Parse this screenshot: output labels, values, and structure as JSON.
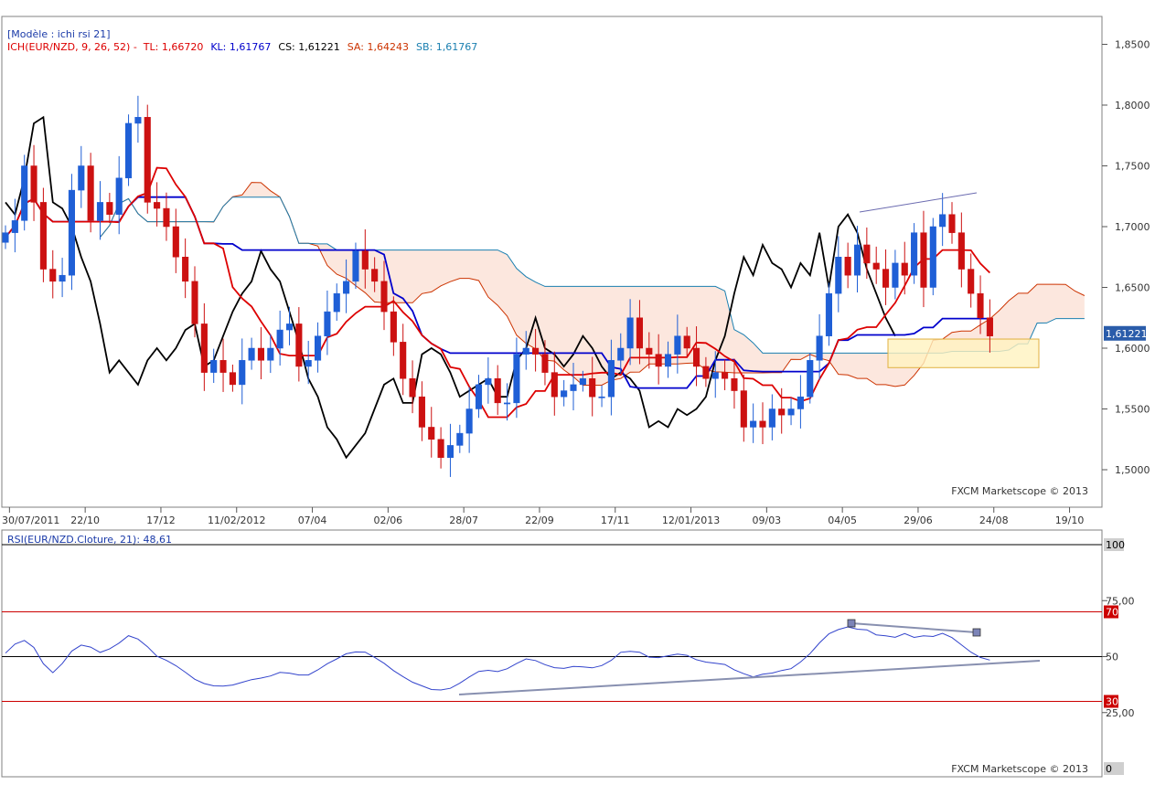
{
  "price_chart": {
    "header_template": "[Modèle : ichi rsi 21]",
    "legend": [
      {
        "text": "ICH(EUR/NZD, 9, 26, 52) -",
        "color": "#dd0000"
      },
      {
        "text": "TL: 1,66720",
        "color": "#dd0000"
      },
      {
        "text": "KL: 1,61767",
        "color": "#0000cc"
      },
      {
        "text": "CS: 1,61221",
        "color": "#000000"
      },
      {
        "text": "SA: 1,64243",
        "color": "#cc3300"
      },
      {
        "text": "SB: 1,61767",
        "color": "#1a7fb0"
      }
    ],
    "last_price_label": "1,61221",
    "watermark": "FXCM Marketscope © 2013",
    "y_ticks": [
      "1,8500",
      "1,8000",
      "1,7500",
      "1,7000",
      "1,6500",
      "1,6000",
      "1,5500",
      "1,5000"
    ],
    "x_ticks": [
      "30/07/2011",
      "22/10",
      "17/12",
      "11/02/2012",
      "07/04",
      "02/06",
      "28/07",
      "22/09",
      "17/11",
      "12/01/2013",
      "09/03",
      "04/05",
      "29/06",
      "24/08",
      "19/10"
    ]
  },
  "rsi_chart": {
    "header": "RSI(EUR/NZD.Cloture, 21): 48,61",
    "watermark": "FXCM Marketscope © 2013",
    "y_ticks": [
      "100",
      "75,00",
      "70",
      "50",
      "30",
      "25,00",
      "0"
    ]
  },
  "chart_data": [
    {
      "type": "candlestick",
      "title": "ICH(EUR/NZD, 9, 26, 52)",
      "symbol": "EUR/NZD",
      "ylim": [
        1.48,
        1.86
      ],
      "x_ticks": [
        "30/07/2011",
        "22/10",
        "17/12",
        "11/02/2012",
        "07/04",
        "02/06",
        "28/07",
        "22/09",
        "17/11",
        "12/01/2013",
        "09/03",
        "04/05",
        "29/06",
        "24/08",
        "19/10"
      ],
      "closes": [
        1.695,
        1.705,
        1.75,
        1.72,
        1.665,
        1.655,
        1.66,
        1.73,
        1.75,
        1.705,
        1.72,
        1.71,
        1.74,
        1.785,
        1.79,
        1.72,
        1.715,
        1.7,
        1.675,
        1.655,
        1.62,
        1.58,
        1.59,
        1.58,
        1.57,
        1.59,
        1.6,
        1.59,
        1.6,
        1.615,
        1.62,
        1.585,
        1.59,
        1.61,
        1.63,
        1.645,
        1.655,
        1.68,
        1.665,
        1.655,
        1.63,
        1.605,
        1.575,
        1.56,
        1.535,
        1.525,
        1.51,
        1.52,
        1.53,
        1.55,
        1.57,
        1.575,
        1.555,
        1.555,
        1.595,
        1.6,
        1.595,
        1.58,
        1.56,
        1.565,
        1.57,
        1.575,
        1.56,
        1.56,
        1.59,
        1.6,
        1.625,
        1.6,
        1.595,
        1.585,
        1.595,
        1.61,
        1.6,
        1.585,
        1.575,
        1.58,
        1.575,
        1.565,
        1.535,
        1.54,
        1.535,
        1.55,
        1.545,
        1.55,
        1.56,
        1.59,
        1.61,
        1.645,
        1.675,
        1.66,
        1.685,
        1.67,
        1.665,
        1.65,
        1.67,
        1.66,
        1.695,
        1.65,
        1.7,
        1.71,
        1.695,
        1.665,
        1.645,
        1.625,
        1.61
      ],
      "series": [
        {
          "name": "TL",
          "last": 1.6672
        },
        {
          "name": "KL",
          "last": 1.61767
        },
        {
          "name": "CS",
          "last": 1.61221
        },
        {
          "name": "SA",
          "last": 1.64243
        },
        {
          "name": "SB",
          "last": 1.61767
        }
      ]
    },
    {
      "type": "line",
      "title": "RSI(EUR/NZD.Cloture, 21)",
      "ylim": [
        0,
        100
      ],
      "last": 48.61,
      "reference_levels": [
        70,
        50,
        30
      ],
      "y_ticks": [
        "100",
        "75,00",
        "70",
        "50",
        "30",
        "25,00",
        "0"
      ]
    }
  ]
}
